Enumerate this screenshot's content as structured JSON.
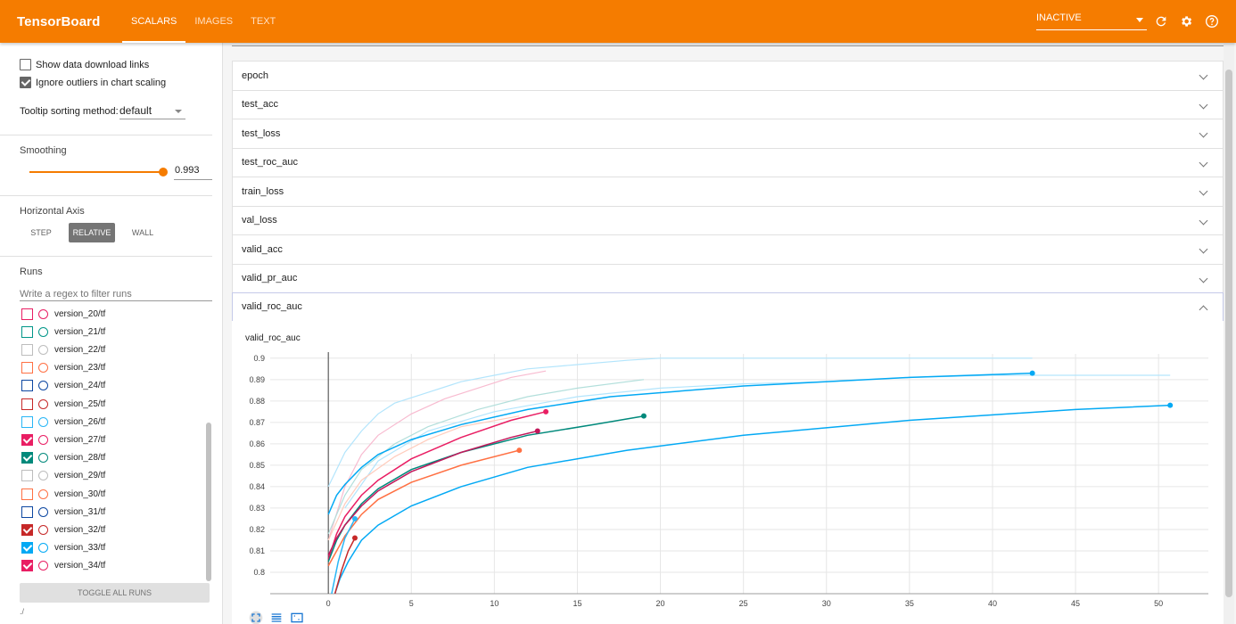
{
  "header": {
    "brand": "TensorBoard",
    "tabs": [
      "SCALARS",
      "IMAGES",
      "TEXT"
    ],
    "active_tab": "SCALARS",
    "run_state": "INACTIVE",
    "icons": [
      "refresh-icon",
      "settings-icon",
      "help-icon"
    ]
  },
  "sidebar": {
    "show_download_links": "Show data download links",
    "ignore_outliers": "Ignore outliers in chart scaling",
    "ignore_outliers_checked": true,
    "tooltip_label": "Tooltip sorting method:",
    "tooltip_value": "default",
    "smoothing_label": "Smoothing",
    "smoothing_value": "0.993",
    "horizontal_axis_label": "Horizontal Axis",
    "axis_buttons": [
      "STEP",
      "RELATIVE",
      "WALL"
    ],
    "axis_active": "RELATIVE",
    "runs_label": "Runs",
    "runs_filter_placeholder": "Write a regex to filter runs",
    "toggle_all": "TOGGLE ALL RUNS",
    "footer_path": "./"
  },
  "runs": [
    {
      "name": "version_20/tf",
      "color": "#e91e63",
      "checked": false
    },
    {
      "name": "version_21/tf",
      "color": "#009688",
      "checked": false
    },
    {
      "name": "version_22/tf",
      "color": "#bdbdbd",
      "checked": false
    },
    {
      "name": "version_23/tf",
      "color": "#ff7043",
      "checked": false
    },
    {
      "name": "version_24/tf",
      "color": "#0d47a1",
      "checked": false
    },
    {
      "name": "version_25/tf",
      "color": "#c62828",
      "checked": false
    },
    {
      "name": "version_26/tf",
      "color": "#29b6f6",
      "checked": false
    },
    {
      "name": "version_27/tf",
      "color": "#e91e63",
      "checked": true
    },
    {
      "name": "version_28/tf",
      "color": "#00897b",
      "checked": true
    },
    {
      "name": "version_29/tf",
      "color": "#bdbdbd",
      "checked": false
    },
    {
      "name": "version_30/tf",
      "color": "#ff7043",
      "checked": false
    },
    {
      "name": "version_31/tf",
      "color": "#0d47a1",
      "checked": false
    },
    {
      "name": "version_32/tf",
      "color": "#c62828",
      "checked": true
    },
    {
      "name": "version_33/tf",
      "color": "#03a9f4",
      "checked": true
    },
    {
      "name": "version_34/tf",
      "color": "#e91e63",
      "checked": true
    }
  ],
  "categories": [
    {
      "label": "epoch",
      "expanded": false
    },
    {
      "label": "test_acc",
      "expanded": false
    },
    {
      "label": "test_loss",
      "expanded": false
    },
    {
      "label": "test_roc_auc",
      "expanded": false
    },
    {
      "label": "train_loss",
      "expanded": false
    },
    {
      "label": "val_loss",
      "expanded": false
    },
    {
      "label": "valid_acc",
      "expanded": false
    },
    {
      "label": "valid_pr_auc",
      "expanded": false
    },
    {
      "label": "valid_roc_auc",
      "expanded": true
    }
  ],
  "chart_data": {
    "type": "line",
    "title": "valid_roc_auc",
    "xlabel": "",
    "ylabel": "",
    "xlim": [
      -3.5,
      53
    ],
    "ylim": [
      0.79,
      0.902
    ],
    "xticks": [
      0,
      5,
      10,
      15,
      20,
      25,
      30,
      35,
      40,
      45,
      50
    ],
    "yticks": [
      0.8,
      0.81,
      0.82,
      0.83,
      0.84,
      0.85,
      0.86,
      0.87,
      0.88,
      0.89,
      0.9
    ],
    "grid": true,
    "series": [
      {
        "color": "#03a9f4",
        "end": [
          42.4,
          0.893
        ],
        "x": [
          0,
          0.5,
          1,
          2,
          3,
          5,
          8,
          12,
          17,
          25,
          35,
          42.4
        ],
        "y": [
          0.827,
          0.836,
          0.841,
          0.849,
          0.855,
          0.862,
          0.869,
          0.876,
          0.882,
          0.887,
          0.891,
          0.893
        ]
      },
      {
        "color": "#03a9f4",
        "end": [
          50.7,
          0.878
        ],
        "x": [
          0.4,
          0.7,
          1.2,
          2,
          3,
          5,
          8,
          12,
          18,
          25,
          35,
          45,
          50.7
        ],
        "y": [
          0.79,
          0.797,
          0.805,
          0.815,
          0.822,
          0.831,
          0.84,
          0.849,
          0.857,
          0.864,
          0.871,
          0.876,
          0.878
        ]
      },
      {
        "color": "#e91e63",
        "end": [
          13.1,
          0.875
        ],
        "x": [
          0,
          0.5,
          1,
          2,
          3,
          5,
          8,
          11,
          13.1
        ],
        "y": [
          0.806,
          0.818,
          0.826,
          0.836,
          0.843,
          0.853,
          0.863,
          0.871,
          0.875
        ]
      },
      {
        "color": "#00897b",
        "end": [
          19.0,
          0.873
        ],
        "x": [
          0,
          0.5,
          1,
          2,
          3,
          5,
          8,
          12,
          16,
          19
        ],
        "y": [
          0.805,
          0.815,
          0.822,
          0.832,
          0.839,
          0.848,
          0.856,
          0.864,
          0.869,
          0.873
        ]
      },
      {
        "color": "#c2185b",
        "end": [
          12.6,
          0.866
        ],
        "x": [
          0,
          0.5,
          1,
          2,
          3,
          5,
          8,
          11,
          12.6
        ],
        "y": [
          0.808,
          0.816,
          0.822,
          0.831,
          0.838,
          0.847,
          0.856,
          0.863,
          0.866
        ]
      },
      {
        "color": "#ff7043",
        "end": [
          11.5,
          0.857
        ],
        "x": [
          0,
          0.5,
          1,
          2,
          3,
          5,
          8,
          11.5
        ],
        "y": [
          0.803,
          0.81,
          0.817,
          0.827,
          0.834,
          0.842,
          0.85,
          0.857
        ]
      },
      {
        "color": "#29b6f6",
        "end": [
          1.6,
          0.825
        ],
        "x": [
          0.2,
          0.6,
          1.0,
          1.6
        ],
        "y": [
          0.79,
          0.805,
          0.816,
          0.825
        ]
      },
      {
        "color": "#c62828",
        "end": [
          1.6,
          0.816
        ],
        "x": [
          0.4,
          0.8,
          1.2,
          1.6
        ],
        "y": [
          0.79,
          0.801,
          0.81,
          0.816
        ]
      }
    ],
    "raw_series": [
      {
        "color": "#b3e5fc",
        "x": [
          0,
          1,
          2,
          3,
          4,
          6,
          8,
          10,
          12,
          15,
          18,
          20,
          25,
          30,
          35,
          40,
          42.4
        ],
        "y": [
          0.84,
          0.856,
          0.866,
          0.874,
          0.879,
          0.884,
          0.889,
          0.892,
          0.895,
          0.897,
          0.899,
          0.9,
          0.9,
          0.9,
          0.9,
          0.9,
          0.9
        ]
      },
      {
        "color": "#b3e5fc",
        "x": [
          1,
          3,
          6,
          10,
          15,
          20,
          25,
          30,
          35,
          40,
          45,
          50.7
        ],
        "y": [
          0.83,
          0.852,
          0.866,
          0.875,
          0.882,
          0.886,
          0.888,
          0.889,
          0.891,
          0.892,
          0.892,
          0.892
        ]
      },
      {
        "color": "#f8bbd0",
        "x": [
          0,
          1,
          2,
          3,
          5,
          7,
          9,
          11,
          13.1
        ],
        "y": [
          0.815,
          0.84,
          0.855,
          0.864,
          0.874,
          0.881,
          0.886,
          0.891,
          0.894
        ]
      },
      {
        "color": "#b2dfdb",
        "x": [
          0,
          1,
          2,
          4,
          6,
          9,
          12,
          15,
          19
        ],
        "y": [
          0.818,
          0.836,
          0.848,
          0.86,
          0.868,
          0.876,
          0.882,
          0.886,
          0.89
        ]
      },
      {
        "color": "#ffccbc",
        "x": [
          0,
          1,
          2,
          4,
          6,
          8,
          11.5
        ],
        "y": [
          0.815,
          0.832,
          0.843,
          0.854,
          0.862,
          0.868,
          0.873
        ]
      }
    ]
  }
}
